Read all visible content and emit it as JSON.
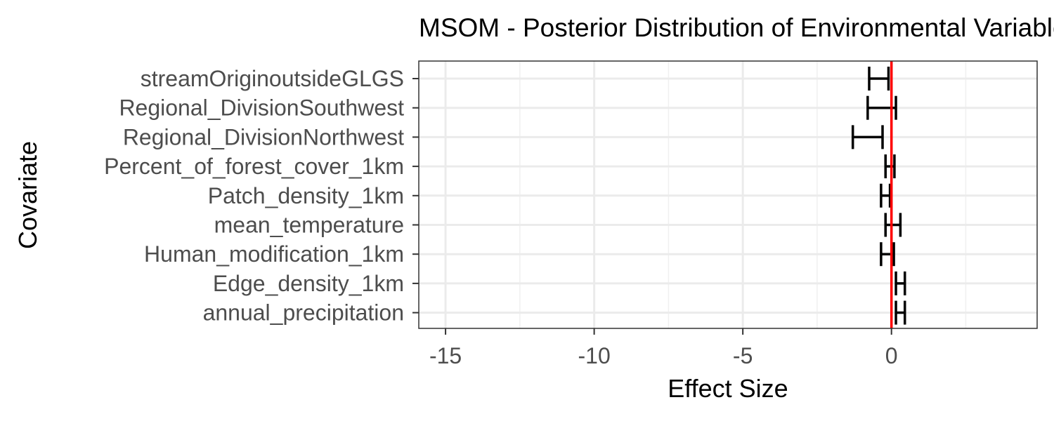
{
  "chart_data": {
    "type": "errorbar",
    "title": "MSOM - Posterior Distribution of Environmental Variables",
    "xlabel": "Effect Size",
    "ylabel": "Covariate",
    "xlim": [
      -15.9,
      4.9
    ],
    "xticks": [
      -15,
      -10,
      -5,
      0
    ],
    "grid": true,
    "reference_line": {
      "x": 0,
      "color": "#ff0000"
    },
    "categories": [
      "streamOriginoutsideGLGS",
      "Regional_DivisionSouthwest",
      "Regional_DivisionNorthwest",
      "Percent_of_forest_cover_1km",
      "Patch_density_1km",
      "mean_temperature",
      "Human_modification_1km",
      "Edge_density_1km",
      "annual_precipitation"
    ],
    "intervals": [
      {
        "low": -0.75,
        "high": -0.1
      },
      {
        "low": -0.8,
        "high": 0.15
      },
      {
        "low": -1.3,
        "high": -0.3
      },
      {
        "low": -0.2,
        "high": 0.1
      },
      {
        "low": -0.35,
        "high": -0.05
      },
      {
        "low": -0.2,
        "high": 0.3
      },
      {
        "low": -0.35,
        "high": 0.08
      },
      {
        "low": 0.15,
        "high": 0.45
      },
      {
        "low": 0.15,
        "high": 0.45
      }
    ]
  }
}
